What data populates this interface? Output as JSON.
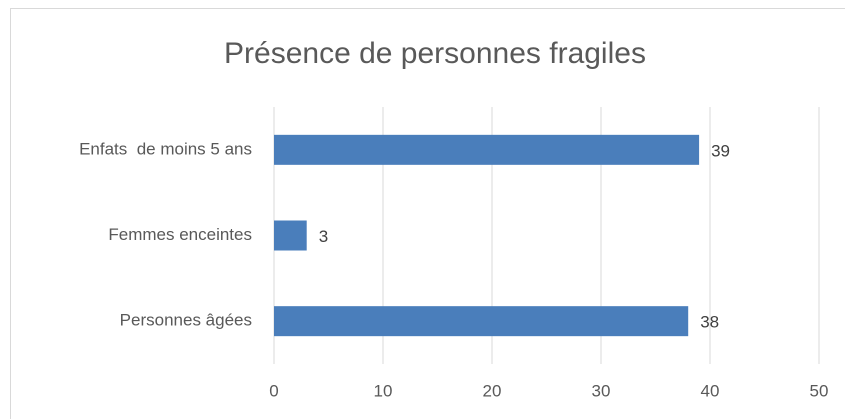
{
  "chart_data": {
    "type": "bar",
    "orientation": "horizontal",
    "title": "Présence de personnes fragiles",
    "categories": [
      "Enfats  de moins 5 ans",
      "Femmes enceintes",
      "Personnes âgées"
    ],
    "values": [
      39,
      3,
      38
    ],
    "color": "#4a7ebb",
    "xlim": [
      0,
      50
    ],
    "xticks": [
      0,
      10,
      20,
      30,
      40,
      50
    ],
    "grid": true
  }
}
